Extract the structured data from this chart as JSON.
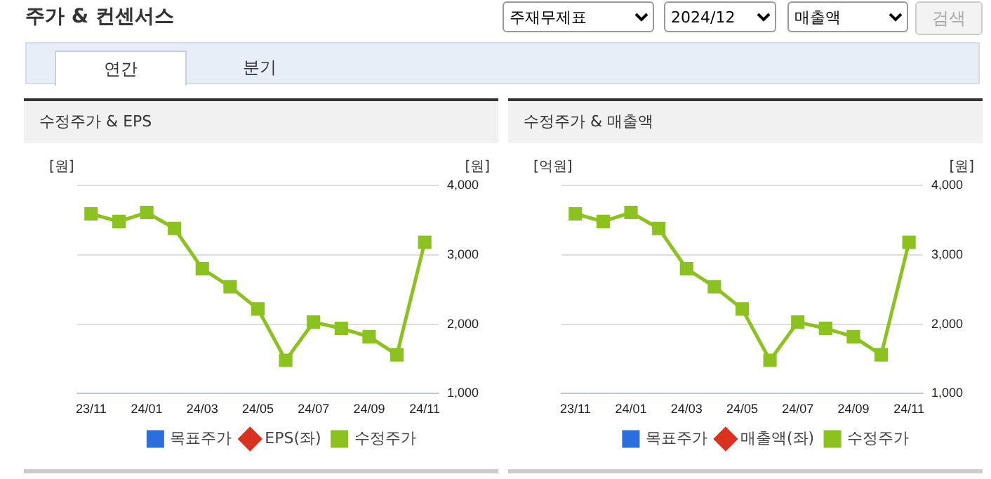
{
  "chart_data": [
    {
      "type": "other",
      "title": "주가 & 컨센서스",
      "annotations": [
        "주재무제표",
        "2024/12",
        "매출액",
        "검색",
        "연간",
        "분기"
      ]
    },
    {
      "type": "line",
      "title": "수정주가 & EPS",
      "ylabel": "[원]",
      "y2label": "[원]",
      "categories": [
        "23/11",
        null,
        "24/01",
        null,
        "24/03",
        null,
        "24/05",
        null,
        "24/07",
        null,
        "24/09",
        null,
        "24/11"
      ],
      "series": [
        {
          "name": "목표주가",
          "type": "bar",
          "color": "#2a6fdb",
          "values": [
            null,
            null,
            null,
            null,
            null,
            null,
            null,
            null,
            null,
            null,
            null,
            null,
            null
          ]
        },
        {
          "name": "EPS(좌)",
          "type": "line",
          "marker": "diamond",
          "color": "#d9321e",
          "values": [
            null,
            null,
            null,
            null,
            null,
            null,
            null,
            null,
            null,
            null,
            null,
            null,
            null
          ]
        },
        {
          "name": "수정주가",
          "type": "line",
          "marker": "square",
          "axis": "y2",
          "color": "#8cc21f",
          "values": [
            3590,
            3480,
            3610,
            3380,
            2800,
            2540,
            2220,
            1480,
            2030,
            1940,
            1820,
            1560,
            3180
          ]
        }
      ],
      "y2lim": [
        1000,
        4000
      ],
      "y2ticks": [
        {
          "value": 1000,
          "label": "1,000"
        },
        {
          "value": 2000,
          "label": "2,000"
        },
        {
          "value": 3000,
          "label": "3,000"
        },
        {
          "value": 4000,
          "label": "4,000"
        }
      ],
      "grid": "y",
      "legend": "bottom"
    },
    {
      "type": "line",
      "title": "수정주가 & 매출액",
      "ylabel": "[억원]",
      "y2label": "[원]",
      "categories": [
        "23/11",
        null,
        "24/01",
        null,
        "24/03",
        null,
        "24/05",
        null,
        "24/07",
        null,
        "24/09",
        null,
        "24/11"
      ],
      "series": [
        {
          "name": "목표주가",
          "type": "bar",
          "color": "#2a6fdb",
          "values": [
            null,
            null,
            null,
            null,
            null,
            null,
            null,
            null,
            null,
            null,
            null,
            null,
            null
          ]
        },
        {
          "name": "매출액(좌)",
          "type": "line",
          "marker": "diamond",
          "color": "#d9321e",
          "values": [
            null,
            null,
            null,
            null,
            null,
            null,
            null,
            null,
            null,
            null,
            null,
            null,
            null
          ]
        },
        {
          "name": "수정주가",
          "type": "line",
          "marker": "square",
          "axis": "y2",
          "color": "#8cc21f",
          "values": [
            3590,
            3480,
            3610,
            3380,
            2800,
            2540,
            2220,
            1480,
            2030,
            1940,
            1820,
            1560,
            3180
          ]
        }
      ],
      "y2lim": [
        1000,
        4000
      ],
      "y2ticks": [
        {
          "value": 1000,
          "label": "1,000"
        },
        {
          "value": 2000,
          "label": "2,000"
        },
        {
          "value": 3000,
          "label": "3,000"
        },
        {
          "value": 4000,
          "label": "4,000"
        }
      ],
      "grid": "y",
      "legend": "bottom"
    }
  ]
}
